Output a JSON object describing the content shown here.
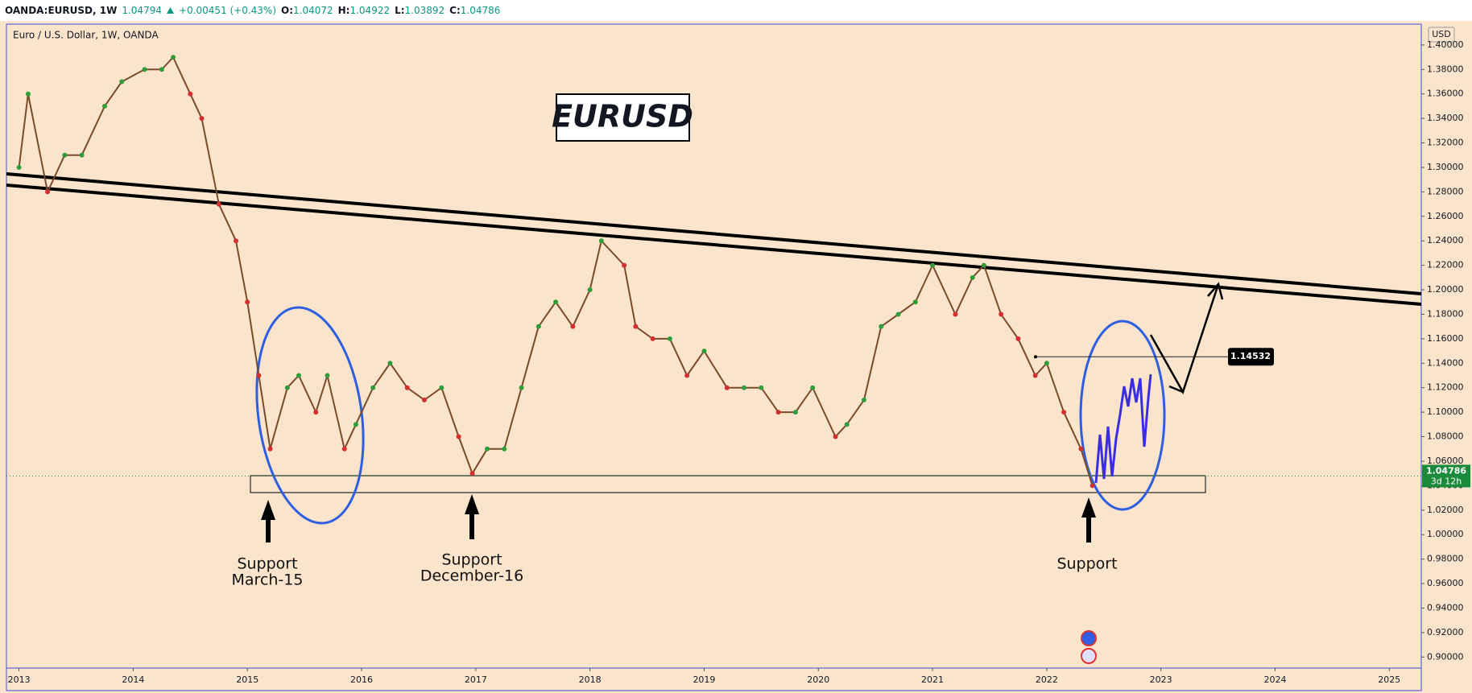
{
  "chart_data": {
    "type": "line",
    "header": {
      "symbol": "OANDA:EURUSD, 1W",
      "last": "1.04794",
      "change": "+0.00451 (+0.43%)",
      "ohlc": [
        {
          "label": "O:",
          "value": "1.04072"
        },
        {
          "label": "H:",
          "value": "1.04922"
        },
        {
          "label": "L:",
          "value": "1.03892"
        },
        {
          "label": "C:",
          "value": "1.04786"
        }
      ]
    },
    "title": "Euro / U.S. Dollar, 1W, OANDA",
    "banner": "EURUSD",
    "currency": "USD",
    "x": [
      2013.0,
      2013.08,
      2013.25,
      2013.4,
      2013.55,
      2013.75,
      2013.9,
      2014.1,
      2014.25,
      2014.35,
      2014.5,
      2014.6,
      2014.75,
      2014.9,
      2015.0,
      2015.1,
      2015.2,
      2015.35,
      2015.45,
      2015.6,
      2015.7,
      2015.85,
      2015.95,
      2016.1,
      2016.25,
      2016.4,
      2016.55,
      2016.7,
      2016.85,
      2016.97,
      2017.1,
      2017.25,
      2017.4,
      2017.55,
      2017.7,
      2017.85,
      2018.0,
      2018.1,
      2018.3,
      2018.4,
      2018.55,
      2018.7,
      2018.85,
      2019.0,
      2019.2,
      2019.35,
      2019.5,
      2019.65,
      2019.8,
      2019.95,
      2020.15,
      2020.25,
      2020.4,
      2020.55,
      2020.7,
      2020.85,
      2021.0,
      2021.2,
      2021.35,
      2021.45,
      2021.6,
      2021.75,
      2021.9,
      2022.0,
      2022.15,
      2022.3,
      2022.4
    ],
    "values": [
      1.3,
      1.36,
      1.28,
      1.31,
      1.31,
      1.35,
      1.37,
      1.38,
      1.38,
      1.39,
      1.36,
      1.34,
      1.27,
      1.24,
      1.19,
      1.13,
      1.07,
      1.12,
      1.13,
      1.1,
      1.13,
      1.07,
      1.09,
      1.12,
      1.14,
      1.12,
      1.11,
      1.12,
      1.08,
      1.05,
      1.07,
      1.07,
      1.12,
      1.17,
      1.19,
      1.17,
      1.2,
      1.24,
      1.22,
      1.17,
      1.16,
      1.16,
      1.13,
      1.15,
      1.12,
      1.12,
      1.12,
      1.1,
      1.1,
      1.12,
      1.08,
      1.09,
      1.11,
      1.17,
      1.18,
      1.19,
      1.22,
      1.18,
      1.21,
      1.22,
      1.18,
      1.16,
      1.13,
      1.14,
      1.1,
      1.07,
      1.04
    ],
    "color": "#7a4a2a",
    "up_color": "#2e9d3a",
    "down_color": "#d32f2f",
    "xlim": [
      2012.89,
      2025.28
    ],
    "xticks": [
      2013,
      2014,
      2015,
      2016,
      2017,
      2018,
      2019,
      2020,
      2021,
      2022,
      2023,
      2024,
      2025
    ],
    "ylim": [
      0.891,
      1.417
    ],
    "yticks": [
      {
        "value": 0.9,
        "label": "0.90000"
      },
      {
        "value": 0.92,
        "label": "0.92000"
      },
      {
        "value": 0.94,
        "label": "0.94000"
      },
      {
        "value": 0.96,
        "label": "0.96000"
      },
      {
        "value": 0.98,
        "label": "0.98000"
      },
      {
        "value": 1.0,
        "label": "1.00000"
      },
      {
        "value": 1.02,
        "label": "1.02000"
      },
      {
        "value": 1.04,
        "label": "1.04000"
      },
      {
        "value": 1.06,
        "label": "1.06000"
      },
      {
        "value": 1.08,
        "label": "1.08000"
      },
      {
        "value": 1.1,
        "label": "1.10000"
      },
      {
        "value": 1.12,
        "label": "1.12000"
      },
      {
        "value": 1.14,
        "label": "1.14000"
      },
      {
        "value": 1.16,
        "label": "1.16000"
      },
      {
        "value": 1.18,
        "label": "1.18000"
      },
      {
        "value": 1.2,
        "label": "1.20000"
      },
      {
        "value": 1.22,
        "label": "1.22000"
      },
      {
        "value": 1.24,
        "label": "1.24000"
      },
      {
        "value": 1.26,
        "label": "1.26000"
      },
      {
        "value": 1.28,
        "label": "1.28000"
      },
      {
        "value": 1.3,
        "label": "1.30000"
      },
      {
        "value": 1.32,
        "label": "1.32000"
      },
      {
        "value": 1.34,
        "label": "1.34000"
      },
      {
        "value": 1.36,
        "label": "1.36000"
      },
      {
        "value": 1.38,
        "label": "1.38000"
      },
      {
        "value": 1.4,
        "label": "1.40000"
      }
    ],
    "last_price": 1.04786,
    "countdown": "3d 12h",
    "target_price": 1.14532,
    "annotations": [
      {
        "lines": [
          "Support",
          "March-15"
        ]
      },
      {
        "lines": [
          "Support",
          "December-16"
        ]
      },
      {
        "lines": [
          "Support"
        ]
      }
    ]
  }
}
